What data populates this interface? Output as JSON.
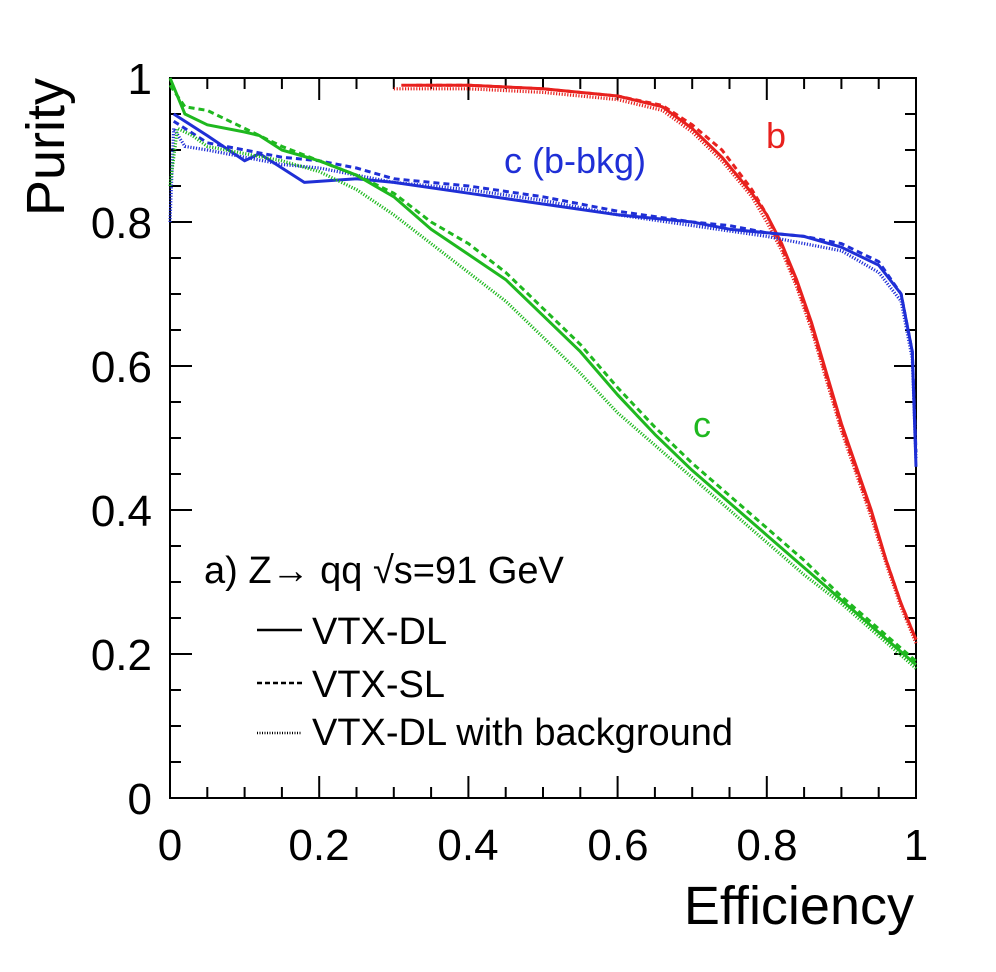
{
  "chart_data": {
    "type": "line",
    "title": "",
    "xlabel": "Efficiency",
    "ylabel": "Purity",
    "xlim": [
      0,
      1
    ],
    "ylim": [
      0,
      1
    ],
    "x_ticks": [
      "0",
      "0.2",
      "0.4",
      "0.6",
      "0.8",
      "1"
    ],
    "y_ticks": [
      "0",
      "0.2",
      "0.4",
      "0.6",
      "0.8",
      "1"
    ],
    "grid": false,
    "legend": {
      "placement": "bottom-left",
      "header": "a) Z→ qq √s=91 GeV",
      "entries": [
        {
          "label": "VTX-DL",
          "style": "solid"
        },
        {
          "label": "VTX-SL",
          "style": "dashed"
        },
        {
          "label": "VTX-DL with background",
          "style": "dotted"
        }
      ]
    },
    "curve_labels": [
      {
        "text": "b",
        "color": "#e8211e",
        "at": [
          0.81,
          0.92
        ]
      },
      {
        "text": "c (b-bkg)",
        "color": "#1f2fd6",
        "at": [
          0.52,
          0.87
        ]
      },
      {
        "text": "c",
        "color": "#1fb81f",
        "at": [
          0.7,
          0.51
        ]
      }
    ],
    "series": [
      {
        "group": "b",
        "style": "solid",
        "color": "#e8211e",
        "x": [
          0.31,
          0.4,
          0.5,
          0.6,
          0.66,
          0.7,
          0.74,
          0.78,
          0.8,
          0.82,
          0.84,
          0.86,
          0.88,
          0.9,
          0.92,
          0.94,
          0.96,
          0.98,
          1.0
        ],
        "y": [
          0.99,
          0.99,
          0.985,
          0.975,
          0.96,
          0.93,
          0.89,
          0.84,
          0.81,
          0.77,
          0.72,
          0.66,
          0.59,
          0.52,
          0.46,
          0.4,
          0.33,
          0.27,
          0.22
        ]
      },
      {
        "group": "b",
        "style": "dashed",
        "color": "#e8211e",
        "x": [
          0.33,
          0.4,
          0.5,
          0.6,
          0.66,
          0.7,
          0.74,
          0.78,
          0.8,
          0.82,
          0.84,
          0.86,
          0.88,
          0.9,
          0.92,
          0.94,
          0.96,
          0.98,
          1.0
        ],
        "y": [
          0.99,
          0.99,
          0.985,
          0.975,
          0.962,
          0.935,
          0.9,
          0.845,
          0.81,
          0.765,
          0.715,
          0.655,
          0.585,
          0.515,
          0.455,
          0.395,
          0.33,
          0.27,
          0.22
        ]
      },
      {
        "group": "b",
        "style": "dotted",
        "color": "#e8211e",
        "x": [
          0.3,
          0.4,
          0.5,
          0.6,
          0.66,
          0.7,
          0.74,
          0.78,
          0.8,
          0.82,
          0.84,
          0.86,
          0.88,
          0.9,
          0.92,
          0.94,
          0.96,
          0.98,
          1.0
        ],
        "y": [
          0.985,
          0.985,
          0.98,
          0.97,
          0.955,
          0.925,
          0.885,
          0.835,
          0.8,
          0.76,
          0.71,
          0.65,
          0.58,
          0.51,
          0.45,
          0.39,
          0.325,
          0.265,
          0.215
        ]
      },
      {
        "group": "c (b-bkg)",
        "style": "solid",
        "color": "#1f2fd6",
        "x": [
          0.005,
          0.05,
          0.1,
          0.12,
          0.15,
          0.18,
          0.25,
          0.3,
          0.4,
          0.5,
          0.6,
          0.7,
          0.75,
          0.8,
          0.85,
          0.9,
          0.95,
          0.98,
          0.995,
          1.0
        ],
        "y": [
          0.95,
          0.92,
          0.885,
          0.895,
          0.875,
          0.855,
          0.86,
          0.855,
          0.84,
          0.825,
          0.81,
          0.8,
          0.79,
          0.785,
          0.78,
          0.765,
          0.74,
          0.7,
          0.62,
          0.46
        ]
      },
      {
        "group": "c (b-bkg)",
        "style": "dashed",
        "color": "#1f2fd6",
        "x": [
          0.005,
          0.05,
          0.1,
          0.15,
          0.2,
          0.25,
          0.3,
          0.4,
          0.5,
          0.6,
          0.7,
          0.75,
          0.8,
          0.85,
          0.9,
          0.95,
          0.98,
          0.995,
          1.0
        ],
        "y": [
          0.94,
          0.91,
          0.9,
          0.89,
          0.885,
          0.875,
          0.86,
          0.85,
          0.835,
          0.815,
          0.8,
          0.795,
          0.785,
          0.78,
          0.77,
          0.745,
          0.7,
          0.62,
          0.48
        ]
      },
      {
        "group": "c (b-bkg)",
        "style": "dotted",
        "color": "#1f2fd6",
        "x": [
          0.0,
          0.005,
          0.02,
          0.05,
          0.1,
          0.15,
          0.2,
          0.25,
          0.3,
          0.4,
          0.5,
          0.6,
          0.7,
          0.8,
          0.85,
          0.9,
          0.95,
          0.98,
          0.995,
          1.0
        ],
        "y": [
          0.8,
          0.93,
          0.905,
          0.9,
          0.89,
          0.88,
          0.875,
          0.865,
          0.855,
          0.845,
          0.83,
          0.81,
          0.795,
          0.78,
          0.77,
          0.76,
          0.73,
          0.69,
          0.61,
          0.47
        ]
      },
      {
        "group": "c",
        "style": "solid",
        "color": "#1fb81f",
        "x": [
          0.0,
          0.02,
          0.05,
          0.1,
          0.12,
          0.15,
          0.2,
          0.25,
          0.3,
          0.35,
          0.4,
          0.45,
          0.5,
          0.55,
          0.6,
          0.65,
          0.7,
          0.75,
          0.8,
          0.85,
          0.9,
          0.95,
          1.0
        ],
        "y": [
          1.0,
          0.95,
          0.935,
          0.925,
          0.92,
          0.9,
          0.885,
          0.865,
          0.835,
          0.79,
          0.755,
          0.72,
          0.67,
          0.62,
          0.56,
          0.505,
          0.455,
          0.41,
          0.365,
          0.32,
          0.275,
          0.23,
          0.185
        ]
      },
      {
        "group": "c",
        "style": "dashed",
        "color": "#1fb81f",
        "x": [
          0.0,
          0.02,
          0.05,
          0.1,
          0.15,
          0.2,
          0.25,
          0.3,
          0.35,
          0.4,
          0.45,
          0.5,
          0.55,
          0.6,
          0.65,
          0.7,
          0.75,
          0.8,
          0.85,
          0.9,
          0.95,
          1.0
        ],
        "y": [
          0.99,
          0.96,
          0.955,
          0.93,
          0.905,
          0.885,
          0.865,
          0.84,
          0.8,
          0.77,
          0.73,
          0.68,
          0.63,
          0.57,
          0.515,
          0.465,
          0.42,
          0.375,
          0.33,
          0.28,
          0.235,
          0.19
        ]
      },
      {
        "group": "c",
        "style": "dotted",
        "color": "#1fb81f",
        "x": [
          0.0,
          0.01,
          0.03,
          0.05,
          0.1,
          0.15,
          0.2,
          0.25,
          0.3,
          0.35,
          0.4,
          0.45,
          0.5,
          0.55,
          0.6,
          0.65,
          0.7,
          0.75,
          0.8,
          0.85,
          0.9,
          0.95,
          1.0
        ],
        "y": [
          0.85,
          0.93,
          0.92,
          0.905,
          0.895,
          0.885,
          0.87,
          0.845,
          0.81,
          0.77,
          0.73,
          0.69,
          0.64,
          0.59,
          0.535,
          0.49,
          0.445,
          0.4,
          0.355,
          0.31,
          0.27,
          0.225,
          0.18
        ]
      }
    ]
  }
}
